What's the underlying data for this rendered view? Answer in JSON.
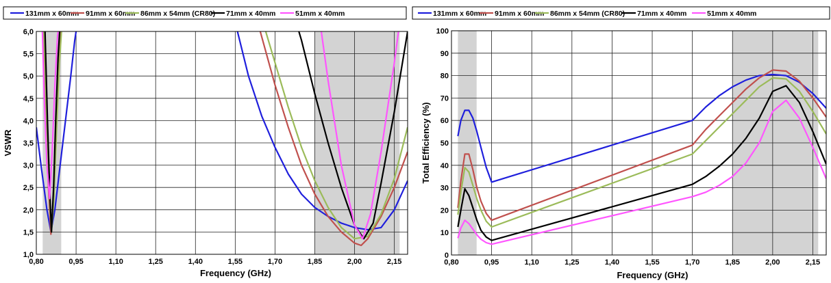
{
  "colors": {
    "band_shading": "#d3d3d3",
    "gridline": "#222222"
  },
  "chart_data": [
    {
      "type": "line",
      "xlabel": "Frequency (GHz)",
      "ylabel": "VSWR",
      "xlim": [
        0.8,
        2.2
      ],
      "ylim": [
        1.0,
        6.0
      ],
      "x_ticks": [
        0.8,
        0.95,
        1.1,
        1.25,
        1.4,
        1.55,
        1.7,
        1.85,
        2.0,
        2.15
      ],
      "x_tick_labels": [
        "0,80",
        "0,95",
        "1,10",
        "1,25",
        "1,40",
        "1,55",
        "1,70",
        "1,85",
        "2,00",
        "2,15"
      ],
      "y_ticks": [
        1.0,
        1.5,
        2.0,
        2.5,
        3.0,
        3.5,
        4.0,
        4.5,
        5.0,
        5.5,
        6.0
      ],
      "y_tick_labels": [
        "1,0",
        "1,5",
        "2,0",
        "2,5",
        "3,0",
        "3,5",
        "4,0",
        "4,5",
        "5,0",
        "5,5",
        "6,0"
      ],
      "grid": true,
      "legend_position": "top",
      "shaded_bands": [
        [
          0.824,
          0.894
        ],
        [
          1.85,
          2.17
        ]
      ],
      "series": [
        {
          "name": "131mm x 60mm",
          "color": "#1f1fdc",
          "x": [
            0.8,
            0.82,
            0.84,
            0.855,
            0.87,
            0.89,
            0.91,
            0.93,
            0.945,
            0.955,
            1.55,
            1.6,
            1.65,
            1.7,
            1.75,
            1.8,
            1.85,
            1.9,
            1.95,
            2.0,
            2.05,
            2.1,
            2.15,
            2.2
          ],
          "y": [
            3.85,
            2.9,
            2.0,
            1.5,
            2.0,
            3.0,
            4.0,
            5.0,
            5.8,
            6.2,
            6.2,
            5.0,
            4.1,
            3.4,
            2.8,
            2.35,
            2.05,
            1.85,
            1.7,
            1.6,
            1.55,
            1.6,
            2.0,
            2.65
          ]
        },
        {
          "name": "91mm x 60mm",
          "color": "#c0504d",
          "x": [
            0.825,
            0.835,
            0.845,
            0.855,
            0.865,
            0.875,
            0.885,
            0.895,
            1.635,
            1.7,
            1.75,
            1.8,
            1.85,
            1.9,
            1.95,
            2.0,
            2.025,
            2.05,
            2.1,
            2.15,
            2.2
          ],
          "y": [
            6.2,
            4.2,
            2.6,
            1.45,
            2.2,
            3.8,
            5.2,
            6.2,
            6.2,
            4.8,
            3.85,
            3.0,
            2.35,
            1.85,
            1.5,
            1.25,
            1.2,
            1.35,
            1.85,
            2.5,
            3.3
          ]
        },
        {
          "name": "86mm x 54mm (CR80)",
          "color": "#9bbb59",
          "x": [
            0.828,
            0.838,
            0.848,
            0.857,
            0.867,
            0.877,
            0.887,
            0.897,
            1.655,
            1.7,
            1.75,
            1.8,
            1.85,
            1.9,
            1.95,
            2.0,
            2.05,
            2.1,
            2.15,
            2.2
          ],
          "y": [
            6.2,
            4.2,
            2.5,
            1.5,
            2.3,
            3.9,
            5.3,
            6.2,
            6.2,
            5.3,
            4.3,
            3.4,
            2.65,
            2.05,
            1.6,
            1.35,
            1.4,
            1.9,
            2.7,
            3.85
          ]
        },
        {
          "name": "71mm x 40mm",
          "color": "#000000",
          "x": [
            0.832,
            0.842,
            0.85,
            0.857,
            0.865,
            0.873,
            0.882,
            0.89,
            1.78,
            1.8,
            1.85,
            1.9,
            1.95,
            2.0,
            2.035,
            2.07,
            2.1,
            2.15,
            2.2
          ],
          "y": [
            6.2,
            4.0,
            2.5,
            1.5,
            2.5,
            4.0,
            5.4,
            6.2,
            6.2,
            5.8,
            4.6,
            3.5,
            2.5,
            1.65,
            1.35,
            1.7,
            2.6,
            4.2,
            6.0
          ]
        },
        {
          "name": "51mm x 40mm",
          "color": "#ff55ff",
          "x": [
            0.822,
            0.83,
            0.84,
            0.85,
            0.86,
            0.87,
            0.88,
            0.887,
            1.87,
            1.9,
            1.95,
            2.0,
            2.03,
            2.06,
            2.1,
            2.15,
            2.17
          ],
          "y": [
            6.2,
            4.5,
            3.0,
            2.25,
            3.3,
            4.8,
            5.9,
            6.2,
            6.2,
            4.9,
            3.0,
            1.65,
            1.35,
            1.9,
            3.3,
            5.3,
            6.2
          ]
        }
      ]
    },
    {
      "type": "line",
      "xlabel": "Frequency (GHz)",
      "ylabel": "Total  Efficiency (%)",
      "xlim": [
        0.8,
        2.2
      ],
      "ylim": [
        0,
        100
      ],
      "x_ticks": [
        0.8,
        0.95,
        1.1,
        1.25,
        1.4,
        1.55,
        1.7,
        1.85,
        2.0,
        2.15
      ],
      "x_tick_labels": [
        "0,80",
        "0,95",
        "1,10",
        "1,25",
        "1,40",
        "1,55",
        "1,70",
        "1,85",
        "2,00",
        "2,15"
      ],
      "y_ticks": [
        0,
        10,
        20,
        30,
        40,
        50,
        60,
        70,
        80,
        90,
        100
      ],
      "y_tick_labels": [
        "0",
        "10",
        "20",
        "30",
        "40",
        "50",
        "60",
        "70",
        "80",
        "90",
        "100"
      ],
      "grid": true,
      "legend_position": "top",
      "shaded_bands": [
        [
          0.824,
          0.894
        ],
        [
          1.85,
          2.17
        ]
      ],
      "series": [
        {
          "name": "131mm x 60mm",
          "color": "#1f1fdc",
          "x": [
            0.824,
            0.835,
            0.85,
            0.865,
            0.88,
            0.895,
            0.91,
            0.93,
            0.95,
            1.7,
            1.75,
            1.8,
            1.85,
            1.9,
            1.95,
            2.0,
            2.05,
            2.1,
            2.15,
            2.2
          ],
          "y": [
            53,
            60,
            64.5,
            64.5,
            61,
            55,
            48,
            39,
            32.5,
            60,
            66,
            71,
            75,
            78,
            80,
            80.5,
            80,
            77,
            72,
            65.5
          ]
        },
        {
          "name": "91mm x 60mm",
          "color": "#c0504d",
          "x": [
            0.824,
            0.835,
            0.85,
            0.865,
            0.88,
            0.895,
            0.91,
            0.93,
            0.95,
            1.7,
            1.75,
            1.8,
            1.85,
            1.9,
            1.95,
            2.0,
            2.05,
            2.1,
            2.15,
            2.2
          ],
          "y": [
            21,
            33,
            45,
            45,
            38,
            30,
            24,
            18.5,
            15.5,
            49,
            56,
            62,
            68,
            74,
            79,
            82.5,
            82,
            77.5,
            70,
            61.5
          ]
        },
        {
          "name": "86mm x 54mm (CR80)",
          "color": "#9bbb59",
          "x": [
            0.824,
            0.835,
            0.85,
            0.865,
            0.88,
            0.895,
            0.91,
            0.93,
            0.95,
            1.7,
            1.75,
            1.8,
            1.85,
            1.9,
            1.95,
            2.0,
            2.05,
            2.1,
            2.15,
            2.2
          ],
          "y": [
            18,
            28,
            39,
            37,
            31,
            25,
            20,
            15,
            12.5,
            45,
            51,
            57,
            63,
            69,
            75,
            79,
            78.5,
            73,
            64,
            54
          ]
        },
        {
          "name": "71mm x 40mm",
          "color": "#000000",
          "x": [
            0.824,
            0.835,
            0.85,
            0.865,
            0.88,
            0.895,
            0.91,
            0.93,
            0.95,
            1.7,
            1.75,
            1.8,
            1.85,
            1.9,
            1.95,
            2.0,
            2.05,
            2.1,
            2.15,
            2.2
          ],
          "y": [
            12.5,
            20,
            29.5,
            26.5,
            21,
            15.5,
            11,
            8,
            6.5,
            31.5,
            35,
            39.5,
            45,
            52,
            61,
            73,
            75.5,
            68,
            55,
            40.5
          ]
        },
        {
          "name": "51mm x 40mm",
          "color": "#ff55ff",
          "x": [
            0.824,
            0.835,
            0.85,
            0.865,
            0.88,
            0.895,
            0.91,
            0.93,
            0.95,
            1.7,
            1.75,
            1.8,
            1.85,
            1.9,
            1.95,
            2.0,
            2.05,
            2.1,
            2.15,
            2.2
          ],
          "y": [
            7.5,
            12,
            15.5,
            14,
            11.5,
            9,
            7,
            5.5,
            4.8,
            26,
            28,
            31,
            35,
            41,
            50,
            64,
            69,
            61,
            48,
            34
          ]
        }
      ]
    }
  ]
}
